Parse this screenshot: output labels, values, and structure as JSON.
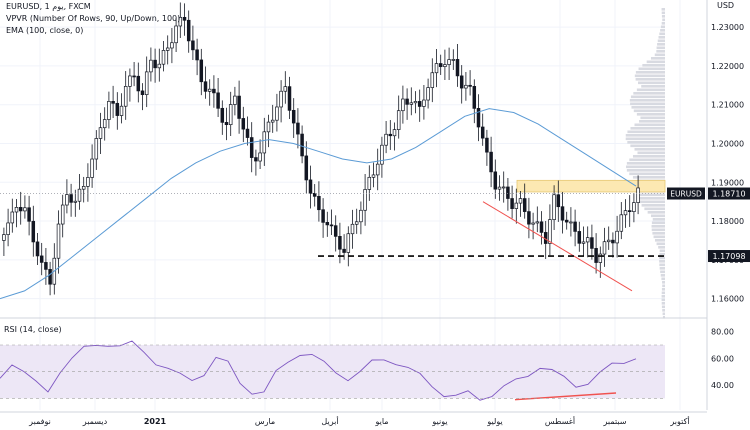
{
  "legend": {
    "line1": "EURUSD, 1 يوم, FXCM",
    "line2": "VPVR (Number Of Rows, 90, Up/Down, 100)",
    "line3": "EMA (100, close, 0)",
    "rsi_label": "RSI (14, close)"
  },
  "price_axis": {
    "corner_label": "USD",
    "ticks": [
      "1.23000",
      "1.22000",
      "1.21000",
      "1.20000",
      "1.19000",
      "1.18000",
      "1.17000",
      "1.16000"
    ],
    "current_symbol": "EURUSD",
    "current_price": "1.18710",
    "support_label": "1.17098"
  },
  "rsi_axis": {
    "ticks": [
      "80.00",
      "60.00",
      "40.00"
    ]
  },
  "time_axis": {
    "labels": [
      "نوفمبر",
      "ديسمبر",
      "2021",
      "مارس",
      "أبريل",
      "مايو",
      "يونيو",
      "يوليو",
      "أغسطس",
      "سبتمبر",
      "أكتوبر"
    ]
  },
  "colors": {
    "bull": "#131722",
    "bear": "#131722",
    "ema": "#5b9bd5",
    "rsi_line": "#7e57c2",
    "rsi_band": "#ede7f6",
    "zone": "#fce8b2",
    "trendline": "#f0524f",
    "support": "#000000",
    "label_bg": "#131722"
  },
  "chart_data": {
    "type": "candlestick",
    "ylim": [
      1.155,
      1.237
    ],
    "close_series": [
      1.178,
      1.185,
      1.182,
      1.176,
      1.168,
      1.165,
      1.178,
      1.188,
      1.184,
      1.19,
      1.195,
      1.205,
      1.21,
      1.208,
      1.214,
      1.218,
      1.212,
      1.222,
      1.22,
      1.225,
      1.23,
      1.232,
      1.224,
      1.216,
      1.214,
      1.209,
      1.205,
      1.212,
      1.204,
      1.196,
      1.198,
      1.205,
      1.21,
      1.214,
      1.206,
      1.196,
      1.188,
      1.182,
      1.18,
      1.175,
      1.173,
      1.178,
      1.184,
      1.19,
      1.196,
      1.201,
      1.205,
      1.21,
      1.212,
      1.208,
      1.216,
      1.219,
      1.222,
      1.22,
      1.216,
      1.213,
      1.206,
      1.196,
      1.19,
      1.187,
      1.185,
      1.184,
      1.181,
      1.178,
      1.176,
      1.185,
      1.182,
      1.178,
      1.176,
      1.174,
      1.171,
      1.173,
      1.176,
      1.18,
      1.184,
      1.187
    ],
    "ema_series": [
      1.16,
      1.162,
      1.166,
      1.171,
      1.176,
      1.181,
      1.186,
      1.191,
      1.195,
      1.198,
      1.2,
      1.201,
      1.2,
      1.198,
      1.196,
      1.195,
      1.196,
      1.199,
      1.203,
      1.207,
      1.209,
      1.208,
      1.205,
      1.201,
      1.197,
      1.193,
      1.189
    ],
    "rsi_series": [
      45,
      58,
      50,
      40,
      35,
      52,
      60,
      66,
      70,
      72,
      69,
      70,
      65,
      58,
      52,
      46,
      44,
      50,
      60,
      55,
      42,
      36,
      34,
      48,
      58,
      65,
      62,
      55,
      50,
      46,
      49,
      56,
      60,
      58,
      52,
      46,
      40,
      34,
      31,
      33,
      30,
      34,
      38,
      42,
      48,
      55,
      50,
      44,
      40,
      43,
      48,
      54,
      58,
      62
    ],
    "rsi_ylim": [
      25,
      85
    ],
    "support_level": 1.17098,
    "current_price": 1.1871,
    "resistance_zone": [
      1.1875,
      1.1905
    ]
  }
}
